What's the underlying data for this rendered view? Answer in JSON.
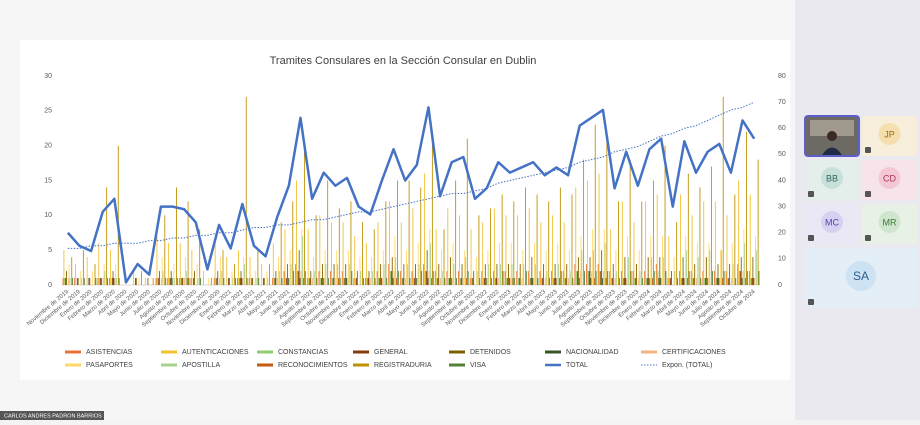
{
  "chart_data": {
    "type": "bar",
    "title": "Tramites Consulares en la Sección Consular en Dublin",
    "categories": [
      "Noviembre de 2019",
      "Diciembre de 2019",
      "Enero de 2020",
      "Febrero de 2020",
      "Marzo de 2020",
      "Abril de 2020",
      "Mayo de 2020",
      "Junio de 2020",
      "Julio de 2020",
      "Agosto de 2020",
      "Septiembre de 2020",
      "Octubre de 2020",
      "Noviembre de 2020",
      "Diciembre de 2020",
      "Enero de 2021",
      "Febrero de 2021",
      "Marzo de 2021",
      "Abril de 2021",
      "Mayo de 2021",
      "Junio de 2021",
      "Julio de 2021",
      "Agosto de 2021",
      "Septiembre de 2021",
      "Octubre de 2021",
      "Noviembre de 2021",
      "Diciembre de 2021",
      "Enero de 2022",
      "Febrero de 2022",
      "Marzo de 2022",
      "Abril de 2022",
      "Mayo de 2022",
      "Junio de 2022",
      "Julio de 2022",
      "Agosto de 2022",
      "Septiembre de 2022",
      "Octubre de 2022",
      "Noviembre de 2022",
      "Diciembre de 2022",
      "Enero de 2023",
      "Febrero de 2023",
      "Marzo de 2023",
      "Abril de 2023",
      "Mayo de 2023",
      "Junio de 2023",
      "Julio de 2023",
      "Agosto de 2023",
      "Septiembre de 2023",
      "Octubre de 2023",
      "Noviembre de 2023",
      "Diciembre de 2023",
      "Enero de 2024",
      "Febrero de 2024",
      "Marzo de 2024",
      "Abril de 2024",
      "Mayo de 2024",
      "Junio de 2024",
      "Julio de 2024",
      "Agosto de 2024",
      "Septiembre de 2024",
      "Octubre de 2024"
    ],
    "ylim": [
      0,
      30
    ],
    "yticks": [
      0,
      5,
      10,
      15,
      20,
      25,
      30
    ],
    "y2lim": [
      0,
      80
    ],
    "y2ticks": [
      0,
      10,
      20,
      30,
      40,
      50,
      60,
      70,
      80
    ],
    "grid": false,
    "series": [
      {
        "name": "ASISTENCIAS",
        "color": "#e97132",
        "values": [
          1,
          1,
          0,
          1,
          1,
          0,
          0,
          0,
          1,
          1,
          1,
          1,
          0,
          1,
          0,
          1,
          1,
          0,
          1,
          2,
          3,
          1,
          2,
          2,
          2,
          1,
          1,
          2,
          3,
          2,
          2,
          3,
          2,
          2,
          2,
          1,
          2,
          2,
          2,
          2,
          2,
          2,
          2,
          2,
          3,
          3,
          3,
          2,
          2,
          2,
          2,
          3,
          1,
          2,
          2,
          2,
          2,
          2,
          3,
          2
        ]
      },
      {
        "name": "AUTENTICACIONES",
        "color": "#f2c12e",
        "values": [
          5,
          3,
          4,
          6,
          5,
          0,
          2,
          1,
          7,
          6,
          6,
          5,
          2,
          6,
          4,
          5,
          4,
          3,
          6,
          8,
          15,
          8,
          10,
          9,
          9,
          7,
          6,
          9,
          12,
          9,
          11,
          16,
          8,
          11,
          10,
          8,
          9,
          11,
          10,
          10,
          11,
          9,
          10,
          9,
          14,
          15,
          16,
          8,
          12,
          9,
          12,
          13,
          7,
          13,
          10,
          12,
          12,
          10,
          15,
          13
        ]
      },
      {
        "name": "CONSTANCIAS",
        "color": "#8fce6e",
        "values": [
          1,
          0,
          0,
          1,
          0,
          0,
          0,
          0,
          1,
          1,
          1,
          0,
          0,
          1,
          0,
          1,
          0,
          0,
          1,
          1,
          2,
          1,
          1,
          1,
          1,
          1,
          1,
          1,
          2,
          1,
          1,
          2,
          1,
          1,
          1,
          1,
          1,
          1,
          1,
          1,
          1,
          1,
          1,
          1,
          2,
          2,
          2,
          1,
          1,
          1,
          1,
          2,
          1,
          1,
          1,
          1,
          1,
          1,
          2,
          1
        ]
      },
      {
        "name": "GENERAL",
        "color": "#843c0c",
        "values": [
          1,
          1,
          1,
          1,
          1,
          0,
          1,
          0,
          1,
          1,
          1,
          1,
          0,
          1,
          1,
          1,
          1,
          1,
          1,
          1,
          2,
          1,
          1,
          1,
          1,
          1,
          1,
          1,
          2,
          1,
          1,
          2,
          1,
          1,
          1,
          1,
          1,
          1,
          1,
          1,
          1,
          1,
          1,
          1,
          2,
          2,
          2,
          1,
          1,
          1,
          1,
          1,
          1,
          1,
          1,
          1,
          1,
          1,
          2,
          1
        ]
      },
      {
        "name": "DETENIDOS",
        "color": "#7f6000",
        "values": [
          2,
          1,
          1,
          1,
          2,
          0,
          1,
          1,
          2,
          2,
          1,
          2,
          0,
          2,
          1,
          2,
          1,
          1,
          2,
          3,
          5,
          2,
          3,
          3,
          3,
          2,
          2,
          3,
          4,
          3,
          3,
          5,
          3,
          4,
          3,
          2,
          3,
          3,
          3,
          3,
          4,
          3,
          3,
          3,
          4,
          4,
          5,
          3,
          4,
          3,
          4,
          4,
          2,
          4,
          3,
          4,
          3,
          3,
          4,
          4
        ]
      },
      {
        "name": "NACIONALIDAD",
        "color": "#375623",
        "values": [
          0,
          0,
          0,
          0,
          1,
          0,
          0,
          0,
          0,
          1,
          0,
          0,
          0,
          0,
          0,
          1,
          0,
          0,
          0,
          1,
          1,
          0,
          1,
          0,
          1,
          0,
          0,
          1,
          1,
          0,
          1,
          1,
          0,
          1,
          0,
          0,
          1,
          0,
          1,
          0,
          1,
          0,
          1,
          0,
          1,
          1,
          1,
          0,
          1,
          0,
          1,
          1,
          0,
          1,
          0,
          1,
          1,
          0,
          1,
          1
        ]
      },
      {
        "name": "CERTIFICACIONES",
        "color": "#f4b183",
        "values": [
          1,
          0,
          0,
          1,
          1,
          0,
          0,
          0,
          1,
          0,
          1,
          0,
          0,
          1,
          0,
          1,
          0,
          0,
          1,
          1,
          2,
          1,
          1,
          1,
          1,
          0,
          1,
          1,
          2,
          1,
          1,
          2,
          1,
          1,
          1,
          0,
          1,
          1,
          1,
          1,
          1,
          1,
          1,
          1,
          2,
          2,
          2,
          1,
          1,
          1,
          1,
          1,
          0,
          1,
          1,
          1,
          1,
          1,
          2,
          1
        ]
      },
      {
        "name": "PASAPORTES",
        "color": "#ffd966",
        "values": [
          3,
          2,
          2,
          3,
          3,
          0,
          1,
          0,
          4,
          3,
          4,
          3,
          1,
          4,
          2,
          4,
          2,
          2,
          4,
          5,
          8,
          4,
          5,
          5,
          5,
          4,
          4,
          5,
          7,
          5,
          6,
          8,
          5,
          6,
          5,
          4,
          5,
          6,
          6,
          5,
          6,
          5,
          6,
          5,
          7,
          8,
          8,
          5,
          7,
          5,
          7,
          7,
          4,
          7,
          6,
          6,
          5,
          6,
          8,
          7
        ]
      },
      {
        "name": "APOSTILLA",
        "color": "#a9d18e",
        "values": [
          1,
          1,
          0,
          2,
          1,
          0,
          0,
          0,
          2,
          1,
          2,
          1,
          0,
          2,
          1,
          3,
          1,
          1,
          2,
          3,
          7,
          2,
          3,
          3,
          3,
          2,
          2,
          3,
          4,
          3,
          3,
          6,
          2,
          3,
          4,
          2,
          3,
          3,
          3,
          3,
          3,
          2,
          3,
          2,
          5,
          5,
          6,
          2,
          4,
          2,
          4,
          4,
          2,
          5,
          4,
          5,
          5,
          3,
          6,
          5
        ]
      },
      {
        "name": "RECONOCIMIENTOS",
        "color": "#c55a11",
        "values": [
          0,
          0,
          0,
          0,
          0,
          0,
          0,
          0,
          0,
          0,
          1,
          0,
          0,
          0,
          0,
          0,
          0,
          0,
          0,
          0,
          1,
          0,
          0,
          1,
          0,
          0,
          0,
          0,
          1,
          0,
          0,
          1,
          0,
          0,
          1,
          0,
          0,
          0,
          1,
          0,
          0,
          0,
          1,
          0,
          0,
          1,
          1,
          0,
          0,
          0,
          1,
          0,
          0,
          1,
          0,
          0,
          1,
          0,
          1,
          0
        ]
      },
      {
        "name": "REGISTRADURIA",
        "color": "#bf9000",
        "values": [
          4,
          5,
          3,
          14,
          20,
          0,
          2,
          1,
          10,
          14,
          12,
          8,
          1,
          5,
          3,
          27,
          5,
          3,
          9,
          12,
          20,
          10,
          15,
          11,
          12,
          9,
          8,
          12,
          15,
          15,
          14,
          21,
          8,
          15,
          21,
          10,
          11,
          13,
          12,
          14,
          13,
          12,
          14,
          13,
          18,
          23,
          21,
          12,
          18,
          12,
          15,
          20,
          9,
          16,
          14,
          17,
          27,
          13,
          22,
          18
        ]
      },
      {
        "name": "VISA",
        "color": "#548235",
        "values": [
          1,
          1,
          1,
          1,
          1,
          0,
          0,
          0,
          1,
          1,
          1,
          1,
          0,
          1,
          1,
          1,
          1,
          0,
          1,
          2,
          2,
          1,
          1,
          1,
          2,
          1,
          1,
          1,
          2,
          1,
          2,
          2,
          1,
          1,
          2,
          1,
          1,
          2,
          1,
          2,
          1,
          1,
          2,
          1,
          2,
          2,
          2,
          1,
          2,
          1,
          2,
          2,
          1,
          2,
          1,
          2,
          2,
          1,
          2,
          2
        ]
      },
      {
        "name": "TOTAL",
        "color": "#4472c4",
        "axis": "y2",
        "kind": "line",
        "values": [
          20,
          15,
          13,
          28,
          33,
          1,
          8,
          4,
          30,
          30,
          29,
          24,
          6,
          23,
          14,
          31,
          15,
          11,
          26,
          38,
          64,
          33,
          43,
          38,
          41,
          30,
          27,
          40,
          52,
          40,
          46,
          68,
          34,
          47,
          49,
          33,
          37,
          47,
          43,
          45,
          47,
          42,
          45,
          42,
          61,
          64,
          67,
          37,
          51,
          38,
          52,
          56,
          30,
          55,
          43,
          51,
          54,
          43,
          63,
          56
        ]
      },
      {
        "name": "Expon. (TOTAL)",
        "color": "#4472c4",
        "axis": "y2",
        "kind": "line",
        "style": "dotted",
        "values": [
          14,
          14,
          15,
          15,
          16,
          16,
          16,
          17,
          17,
          18,
          18,
          19,
          19,
          20,
          20,
          21,
          22,
          22,
          23,
          23,
          24,
          25,
          25,
          26,
          27,
          28,
          28,
          29,
          30,
          31,
          32,
          33,
          34,
          35,
          35,
          36,
          37,
          39,
          40,
          41,
          42,
          43,
          44,
          45,
          47,
          48,
          49,
          51,
          52,
          53,
          55,
          57,
          58,
          60,
          61,
          63,
          65,
          67,
          68,
          70
        ]
      }
    ]
  },
  "participants": [
    "JP",
    "BB",
    "CD",
    "MC",
    "MR",
    "SA"
  ],
  "presenter_name": "CARLOS ANDRES PADRON BARRIOS"
}
